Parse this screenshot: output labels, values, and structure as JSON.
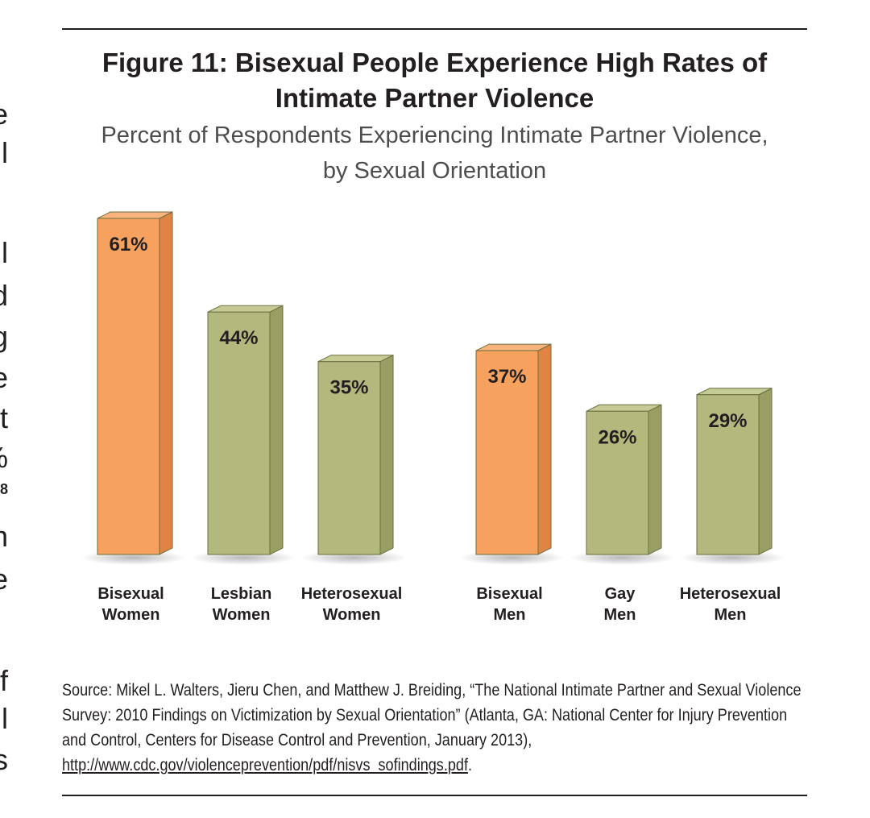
{
  "left_edge_fragments": [
    "e",
    "l",
    "l",
    "d",
    "g",
    "e",
    "t",
    "%",
    "8",
    "n",
    "e",
    "f",
    "l",
    "s"
  ],
  "figure": {
    "title_line1": "Figure 11: Bisexual People Experience High Rates of",
    "title_line2": "Intimate Partner Violence",
    "subtitle_line1": "Percent of Respondents Experiencing Intimate Partner Violence,",
    "subtitle_line2": "by Sexual Orientation"
  },
  "chart_data": {
    "type": "bar",
    "title": "Figure 11: Bisexual People Experience High Rates of Intimate Partner Violence",
    "subtitle": "Percent of Respondents Experiencing Intimate Partner Violence, by Sexual Orientation",
    "categories": [
      [
        "Bisexual",
        "Women"
      ],
      [
        "Lesbian",
        "Women"
      ],
      [
        "Heterosexual",
        "Women"
      ],
      [
        "Bisexual",
        "Men"
      ],
      [
        "Gay",
        "Men"
      ],
      [
        "Heterosexual",
        "Men"
      ]
    ],
    "values": [
      61,
      44,
      35,
      37,
      26,
      29
    ],
    "value_labels": [
      "61%",
      "44%",
      "35%",
      "37%",
      "26%",
      "29%"
    ],
    "ylim": [
      0,
      61
    ],
    "grid": false,
    "legend": "none",
    "colors": {
      "highlight": "#f7a15e",
      "highlight_side": "#e08444",
      "highlight_top": "#f9b37c",
      "normal": "#b3b87d",
      "normal_side": "#999f63",
      "normal_top": "#c6cb96",
      "outline": "#6b6e3f"
    },
    "highlighted": [
      true,
      false,
      false,
      true,
      false,
      false
    ]
  },
  "source": {
    "text": "Source: Mikel L. Walters, Jieru Chen, and Matthew J. Breiding, “The National Intimate Partner and Sexual Violence Survey: 2010 Findings on Victimization by Sexual Orientation” (Atlanta, GA: National Center for Injury Prevention and Control, Centers for Disease Control and Prevention, January 2013), ",
    "link": "http://www.cdc.gov/violenceprevention/pdf/nisvs_sofindings.pdf",
    "end": "."
  }
}
